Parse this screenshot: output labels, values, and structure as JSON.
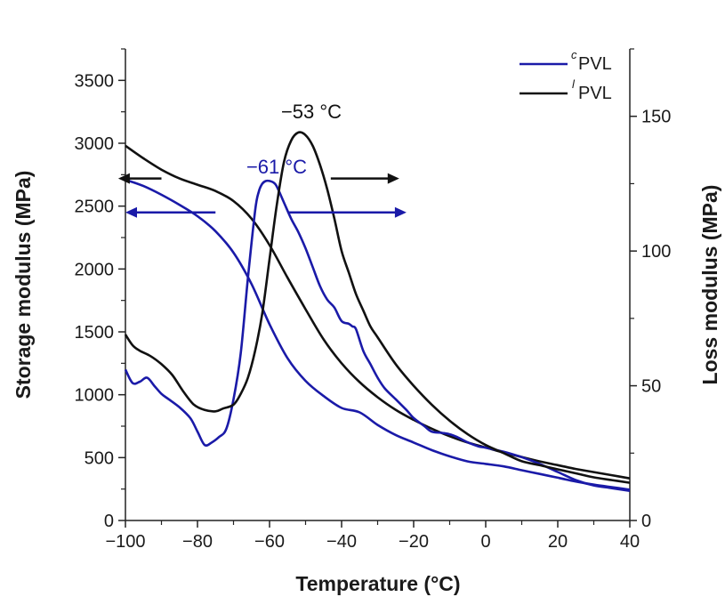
{
  "chart_data": {
    "type": "line",
    "xlabel": "Temperature (°C)",
    "ylabel_left": "Storage modulus (MPa)",
    "ylabel_right": "Loss modulus (MPa)",
    "xlim": [
      -100,
      40
    ],
    "ylim_left": [
      0,
      3750
    ],
    "ylim_right": [
      0,
      175
    ],
    "x_ticks": [
      -100,
      -80,
      -60,
      -40,
      -20,
      0,
      20,
      40
    ],
    "y_left_ticks": [
      0,
      500,
      1000,
      1500,
      2000,
      2500,
      3000,
      3500
    ],
    "y_right_ticks": [
      0,
      50,
      100,
      150
    ],
    "legend": [
      {
        "sup": "c",
        "label": "PVL",
        "color": "#1a1aa8"
      },
      {
        "sup": "l",
        "label": "PVL",
        "color": "#111111"
      }
    ],
    "annotations": [
      {
        "text": "−53 °C",
        "color": "#111111",
        "x": -53,
        "y_right": 155
      },
      {
        "text": "−61 °C",
        "color": "#1a1aa8",
        "x": -61,
        "y_right": 127
      }
    ],
    "arrows": [
      {
        "color": "#111111",
        "from": -90,
        "to": -102,
        "y_left": 2720,
        "dir": "left"
      },
      {
        "color": "#111111",
        "from": -43,
        "to": -24,
        "y_left": 2720,
        "dir": "right"
      },
      {
        "color": "#1a1aa8",
        "from": -75,
        "to": -100,
        "y_left": 2450,
        "dir": "left"
      },
      {
        "color": "#1a1aa8",
        "from": -55,
        "to": -22,
        "y_left": 2450,
        "dir": "right"
      }
    ],
    "series": [
      {
        "name": "cPVL storage modulus",
        "axis": "left",
        "color": "#1a1aa8",
        "x": [
          -100,
          -95,
          -90,
          -85,
          -80,
          -75,
          -70,
          -65,
          -60,
          -55,
          -50,
          -45,
          -40,
          -35,
          -30,
          -25,
          -20,
          -15,
          -10,
          -5,
          0,
          5,
          10,
          15,
          20,
          25,
          30,
          35,
          40
        ],
        "y": [
          2710,
          2660,
          2590,
          2510,
          2420,
          2300,
          2130,
          1880,
          1560,
          1290,
          1110,
          990,
          895,
          860,
          760,
          680,
          620,
          560,
          510,
          470,
          450,
          430,
          400,
          370,
          340,
          310,
          285,
          265,
          245
        ]
      },
      {
        "name": "lPVL storage modulus",
        "axis": "left",
        "color": "#111111",
        "x": [
          -100,
          -95,
          -90,
          -85,
          -80,
          -75,
          -70,
          -65,
          -60,
          -55,
          -50,
          -45,
          -40,
          -35,
          -30,
          -25,
          -20,
          -15,
          -10,
          -5,
          0,
          5,
          10,
          15,
          20,
          25,
          30,
          35,
          40
        ],
        "y": [
          2980,
          2880,
          2790,
          2720,
          2670,
          2620,
          2540,
          2400,
          2190,
          1930,
          1680,
          1440,
          1250,
          1100,
          980,
          880,
          800,
          730,
          670,
          620,
          580,
          540,
          505,
          470,
          440,
          410,
          385,
          360,
          335
        ]
      },
      {
        "name": "cPVL loss modulus",
        "axis": "right",
        "color": "#1a1aa8",
        "x": [
          -100,
          -98,
          -96,
          -94,
          -92,
          -90,
          -88,
          -85,
          -82,
          -80,
          -78,
          -76,
          -74,
          -72,
          -70,
          -68,
          -66,
          -64,
          -63,
          -62,
          -61,
          -60,
          -59,
          -58,
          -56,
          -54,
          -52,
          -50,
          -48,
          -46,
          -44,
          -42,
          -40,
          -38,
          -37,
          -36,
          -34,
          -32,
          -30,
          -28,
          -25,
          -22,
          -20,
          -17,
          -15,
          -12,
          -10,
          -8,
          -5,
          -2,
          0,
          5,
          10,
          15,
          20,
          25,
          30,
          35,
          40
        ],
        "y": [
          56,
          51,
          51.5,
          53,
          50,
          47,
          45,
          42,
          38,
          33,
          28,
          29,
          31,
          34,
          45,
          62,
          90,
          115,
          122,
          125,
          126,
          126,
          125.5,
          124,
          118,
          112,
          107,
          101,
          94,
          87,
          82,
          79,
          74,
          73,
          72,
          71,
          63,
          58,
          53,
          49,
          45,
          41,
          38,
          35,
          33,
          32.5,
          32,
          31,
          29,
          27.5,
          27,
          25.5,
          23.5,
          21,
          18,
          15,
          13,
          12,
          11
        ]
      },
      {
        "name": "lPVL loss modulus",
        "axis": "right",
        "color": "#111111",
        "x": [
          -100,
          -98,
          -96,
          -93,
          -90,
          -87,
          -84,
          -81,
          -78,
          -75,
          -73,
          -70,
          -68,
          -66,
          -64,
          -62,
          -60,
          -58,
          -56,
          -54,
          -52,
          -50,
          -48,
          -46,
          -44,
          -42,
          -40,
          -38,
          -36,
          -34,
          -32,
          -30,
          -25,
          -20,
          -15,
          -10,
          -5,
          0,
          5,
          10,
          15,
          20,
          25,
          30,
          35,
          40
        ],
        "y": [
          69,
          65,
          63,
          61,
          58,
          54,
          48,
          43,
          41,
          40.5,
          41.5,
          43,
          47,
          53,
          63,
          77,
          97,
          117,
          133,
          141,
          144,
          143,
          139,
          132,
          123,
          112,
          100,
          92,
          84,
          78,
          72,
          68,
          58,
          50,
          43,
          37,
          32,
          28,
          25,
          22,
          20.5,
          19,
          17.5,
          16,
          15,
          14
        ]
      }
    ]
  }
}
